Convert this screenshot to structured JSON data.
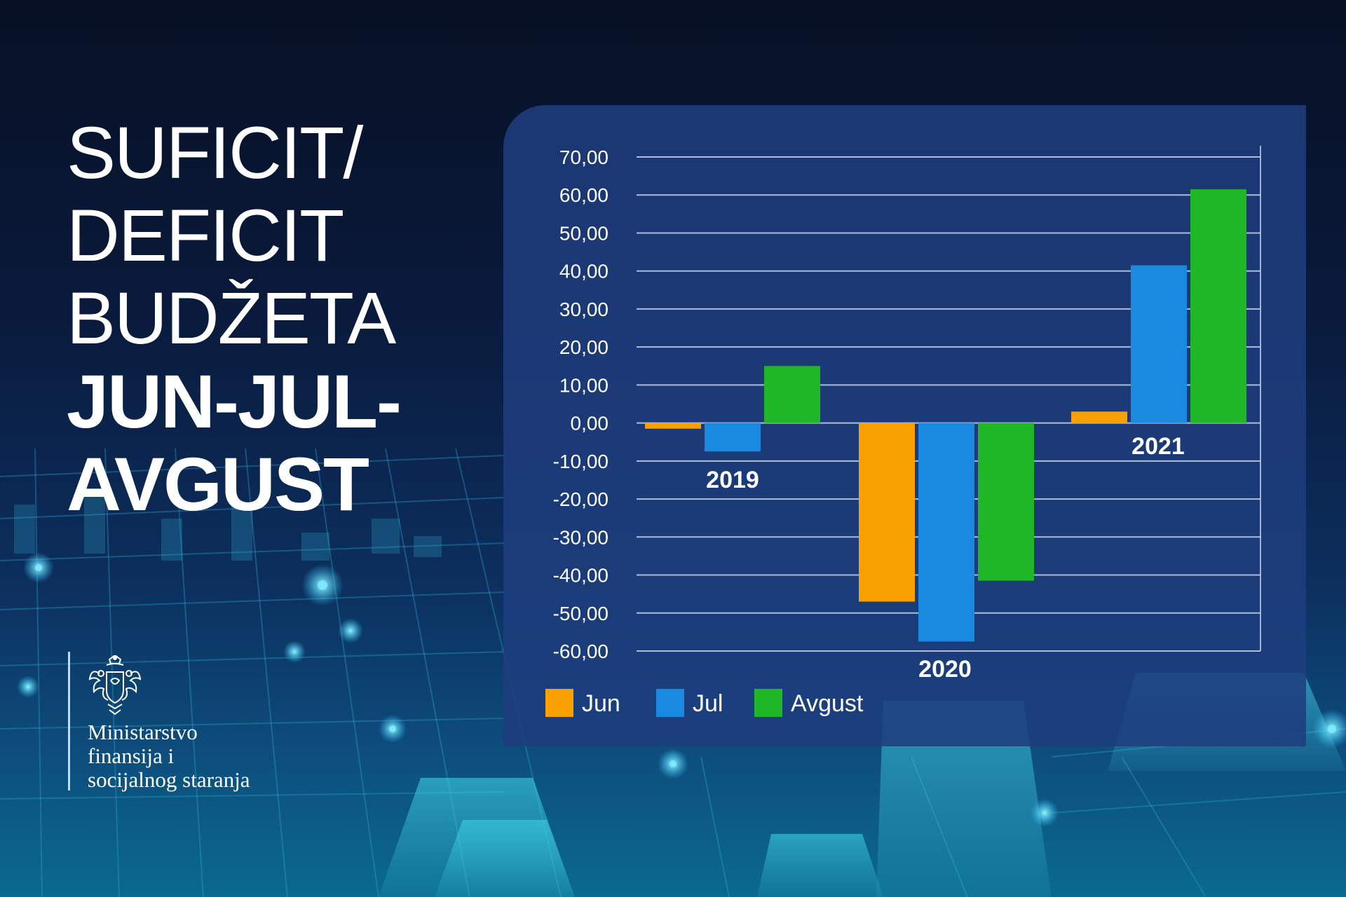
{
  "title": {
    "line1": "SUFICIT/",
    "line2": "DEFICIT",
    "line3": "BUDŽETA",
    "line4": "JUN-JUL-",
    "line5": "AVGUST"
  },
  "logo": {
    "icon": "coat-of-arms-icon",
    "line1": "Ministarstvo",
    "line2": "finansija i",
    "line3": "socijalnog staranja"
  },
  "colors": {
    "jun": "#f8a000",
    "jul": "#1a8ae0",
    "avgust": "#1fb726",
    "panel": "#1e3e7d"
  },
  "chart_data": {
    "type": "bar",
    "categories": [
      "2019",
      "2020",
      "2021"
    ],
    "series": [
      {
        "name": "Jun",
        "values": [
          -1.5,
          -47,
          3
        ]
      },
      {
        "name": "Jul",
        "values": [
          -7.5,
          -57.5,
          41.5
        ]
      },
      {
        "name": "Avgust",
        "values": [
          15,
          -41.5,
          61.5
        ]
      }
    ],
    "ylim": [
      -60,
      70
    ],
    "yticks": [
      "70,00",
      "60,00",
      "50,00",
      "40,00",
      "30,00",
      "20,00",
      "10,00",
      "0,00",
      "-10,00",
      "-20,00",
      "-30,00",
      "-40,00",
      "-50,00",
      "-60,00"
    ],
    "grid": true,
    "legend_position": "bottom-left",
    "xlabel": "",
    "ylabel": ""
  }
}
